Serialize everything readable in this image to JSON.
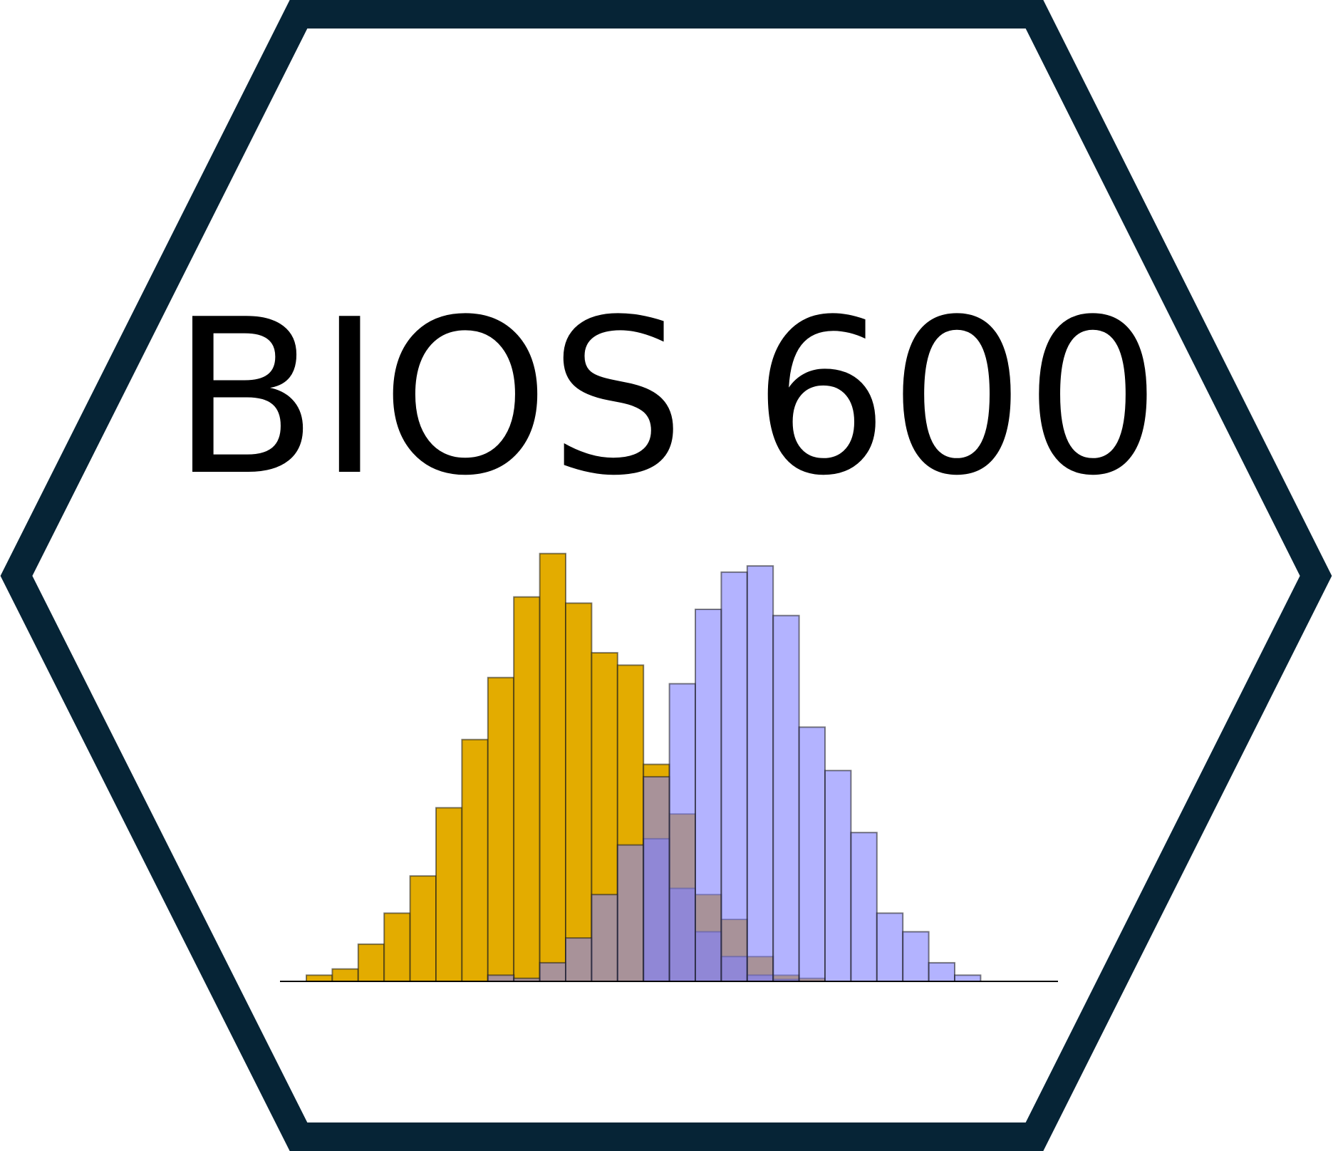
{
  "logo": {
    "title": "BIOS 600",
    "border_color": "#062436",
    "background": "#ffffff"
  },
  "histogram": {
    "baseline_color": "#000000",
    "series": [
      {
        "color": "#e3ac00",
        "values": [
          1,
          2,
          6,
          11,
          17,
          28,
          39,
          49,
          62,
          69,
          61,
          53,
          51,
          35,
          27,
          14,
          10,
          4,
          1,
          0.5,
          0,
          0,
          0,
          0,
          0,
          0,
          0
        ]
      },
      {
        "color": "#8080ff",
        "values": [
          0,
          0,
          0,
          0,
          0,
          0,
          0,
          1,
          0.5,
          3,
          7,
          14,
          22,
          23,
          15,
          8,
          4,
          1,
          0.3,
          0,
          0,
          0,
          0,
          0,
          0,
          0,
          0
        ]
      },
      {
        "color": "#8080ff",
        "values": [
          0,
          0,
          0,
          0,
          0,
          0,
          0,
          0,
          0,
          0,
          0,
          0,
          0,
          33,
          48,
          60,
          66,
          67,
          59,
          41,
          34,
          24,
          11,
          8,
          3,
          1,
          0
        ]
      }
    ]
  }
}
